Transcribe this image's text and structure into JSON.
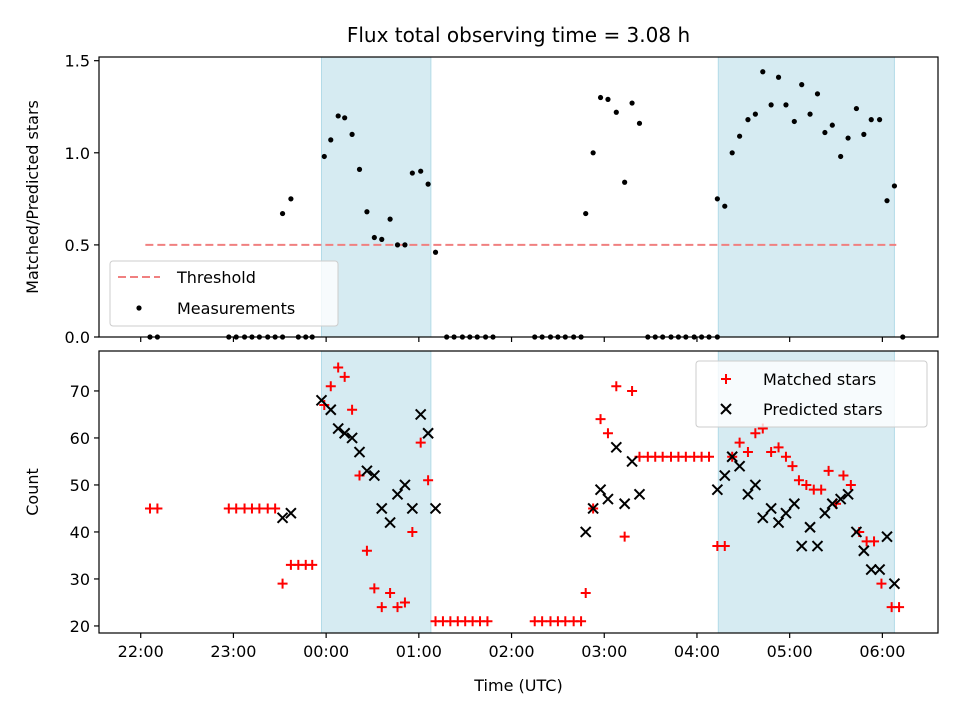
{
  "chart_data": [
    {
      "type": "scatter",
      "title": "Flux total observing time = 3.08 h",
      "ylabel": "Matched/Predicted stars",
      "xlabel": "",
      "xlim": [
        -2.45,
        6.6
      ],
      "ylim": [
        0,
        1.52
      ],
      "yticks": [
        0.0,
        0.5,
        1.0,
        1.5
      ],
      "ytick_labels": [
        "0.0",
        "0.5",
        "1.0",
        "1.5"
      ],
      "threshold": {
        "name": "Threshold",
        "y": 0.5,
        "x": [
          -1.95,
          6.15
        ],
        "color": "#f08080",
        "style": "dashed"
      },
      "legend": {
        "position": "lower-left",
        "entries": [
          "Threshold",
          "Measurements"
        ]
      },
      "shaded_regions": [
        [
          -0.05,
          1.13
        ],
        [
          4.23,
          6.13
        ]
      ],
      "series": [
        {
          "name": "Measurements",
          "marker": "dot",
          "color": "#000000",
          "points": [
            [
              -1.9,
              0
            ],
            [
              -1.82,
              0
            ],
            [
              -1.05,
              0
            ],
            [
              -0.97,
              0
            ],
            [
              -0.88,
              0
            ],
            [
              -0.8,
              0
            ],
            [
              -0.72,
              0
            ],
            [
              -0.63,
              0
            ],
            [
              -0.55,
              0
            ],
            [
              -0.47,
              0
            ],
            [
              -0.3,
              0
            ],
            [
              -0.22,
              0
            ],
            [
              -0.15,
              0
            ],
            [
              -0.47,
              0.67
            ],
            [
              -0.38,
              0.75
            ],
            [
              -0.02,
              0.98
            ],
            [
              0.05,
              1.07
            ],
            [
              0.13,
              1.2
            ],
            [
              0.2,
              1.19
            ],
            [
              0.28,
              1.1
            ],
            [
              0.36,
              0.91
            ],
            [
              0.44,
              0.68
            ],
            [
              0.52,
              0.54
            ],
            [
              0.6,
              0.53
            ],
            [
              0.69,
              0.64
            ],
            [
              0.77,
              0.5
            ],
            [
              0.85,
              0.5
            ],
            [
              0.93,
              0.89
            ],
            [
              1.02,
              0.9
            ],
            [
              1.1,
              0.83
            ],
            [
              1.18,
              0.46
            ],
            [
              1.3,
              0
            ],
            [
              1.38,
              0
            ],
            [
              1.47,
              0
            ],
            [
              1.55,
              0
            ],
            [
              1.63,
              0
            ],
            [
              1.72,
              0
            ],
            [
              1.8,
              0
            ],
            [
              2.25,
              0
            ],
            [
              2.33,
              0
            ],
            [
              2.42,
              0
            ],
            [
              2.5,
              0
            ],
            [
              2.58,
              0
            ],
            [
              2.67,
              0
            ],
            [
              2.75,
              0
            ],
            [
              2.8,
              0.67
            ],
            [
              2.88,
              1.0
            ],
            [
              2.96,
              1.3
            ],
            [
              3.04,
              1.29
            ],
            [
              3.13,
              1.22
            ],
            [
              3.22,
              0.84
            ],
            [
              3.3,
              1.27
            ],
            [
              3.38,
              1.16
            ],
            [
              3.47,
              0
            ],
            [
              3.55,
              0
            ],
            [
              3.63,
              0
            ],
            [
              3.72,
              0
            ],
            [
              3.8,
              0
            ],
            [
              3.88,
              0
            ],
            [
              3.97,
              0
            ],
            [
              4.05,
              0
            ],
            [
              4.13,
              0
            ],
            [
              4.22,
              0
            ],
            [
              4.22,
              0.75
            ],
            [
              4.3,
              0.71
            ],
            [
              4.38,
              1.0
            ],
            [
              4.46,
              1.09
            ],
            [
              4.55,
              1.18
            ],
            [
              4.63,
              1.21
            ],
            [
              4.71,
              1.44
            ],
            [
              4.8,
              1.26
            ],
            [
              4.88,
              1.41
            ],
            [
              4.96,
              1.26
            ],
            [
              5.05,
              1.17
            ],
            [
              5.13,
              1.37
            ],
            [
              5.22,
              1.21
            ],
            [
              5.3,
              1.32
            ],
            [
              5.38,
              1.11
            ],
            [
              5.46,
              1.15
            ],
            [
              5.55,
              0.98
            ],
            [
              5.63,
              1.08
            ],
            [
              5.72,
              1.24
            ],
            [
              5.8,
              1.1
            ],
            [
              5.88,
              1.18
            ],
            [
              5.97,
              1.18
            ],
            [
              6.05,
              0.74
            ],
            [
              6.13,
              0.82
            ],
            [
              6.22,
              0
            ]
          ]
        }
      ]
    },
    {
      "type": "scatter",
      "title": "",
      "xlabel": "Time (UTC)",
      "ylabel": "Count",
      "xlim": [
        -2.45,
        6.6
      ],
      "ylim": [
        18.5,
        78.5
      ],
      "xticks": [
        -2,
        -1,
        0,
        1,
        2,
        3,
        4,
        5,
        6
      ],
      "xtick_labels": [
        "22:00",
        "23:00",
        "00:00",
        "01:00",
        "02:00",
        "03:00",
        "04:00",
        "05:00",
        "06:00"
      ],
      "yticks": [
        20,
        30,
        40,
        50,
        60,
        70
      ],
      "ytick_labels": [
        "20",
        "30",
        "40",
        "50",
        "60",
        "70"
      ],
      "legend": {
        "position": "top-right",
        "entries": [
          "Matched stars",
          "Predicted stars"
        ]
      },
      "shaded_regions": [
        [
          -0.05,
          1.13
        ],
        [
          4.23,
          6.13
        ]
      ],
      "series": [
        {
          "name": "Matched stars",
          "marker": "plus",
          "color": "#ff0000",
          "points": [
            [
              -1.9,
              45
            ],
            [
              -1.82,
              45
            ],
            [
              -1.05,
              45
            ],
            [
              -0.97,
              45
            ],
            [
              -0.88,
              45
            ],
            [
              -0.8,
              45
            ],
            [
              -0.72,
              45
            ],
            [
              -0.63,
              45
            ],
            [
              -0.55,
              45
            ],
            [
              -0.47,
              29
            ],
            [
              -0.38,
              33
            ],
            [
              -0.3,
              33
            ],
            [
              -0.22,
              33
            ],
            [
              -0.15,
              33
            ],
            [
              -0.02,
              67
            ],
            [
              0.05,
              71
            ],
            [
              0.13,
              75
            ],
            [
              0.2,
              73
            ],
            [
              0.28,
              66
            ],
            [
              0.36,
              52
            ],
            [
              0.44,
              36
            ],
            [
              0.52,
              28
            ],
            [
              0.6,
              24
            ],
            [
              0.69,
              27
            ],
            [
              0.77,
              24
            ],
            [
              0.85,
              25
            ],
            [
              0.93,
              40
            ],
            [
              1.02,
              59
            ],
            [
              1.1,
              51
            ],
            [
              1.18,
              21
            ],
            [
              1.26,
              21
            ],
            [
              1.34,
              21
            ],
            [
              1.42,
              21
            ],
            [
              1.5,
              21
            ],
            [
              1.58,
              21
            ],
            [
              1.66,
              21
            ],
            [
              1.74,
              21
            ],
            [
              2.25,
              21
            ],
            [
              2.33,
              21
            ],
            [
              2.42,
              21
            ],
            [
              2.5,
              21
            ],
            [
              2.58,
              21
            ],
            [
              2.67,
              21
            ],
            [
              2.75,
              21
            ],
            [
              2.8,
              27
            ],
            [
              2.88,
              45
            ],
            [
              2.96,
              64
            ],
            [
              3.04,
              61
            ],
            [
              3.13,
              71
            ],
            [
              3.22,
              39
            ],
            [
              3.3,
              70
            ],
            [
              3.38,
              56
            ],
            [
              3.47,
              56
            ],
            [
              3.55,
              56
            ],
            [
              3.63,
              56
            ],
            [
              3.72,
              56
            ],
            [
              3.8,
              56
            ],
            [
              3.88,
              56
            ],
            [
              3.97,
              56
            ],
            [
              4.05,
              56
            ],
            [
              4.13,
              56
            ],
            [
              4.22,
              37
            ],
            [
              4.3,
              37
            ],
            [
              4.38,
              56
            ],
            [
              4.46,
              59
            ],
            [
              4.55,
              57
            ],
            [
              4.63,
              61
            ],
            [
              4.71,
              62
            ],
            [
              4.8,
              57
            ],
            [
              4.88,
              58
            ],
            [
              4.96,
              56
            ],
            [
              5.03,
              54
            ],
            [
              5.1,
              51
            ],
            [
              5.18,
              50
            ],
            [
              5.26,
              49
            ],
            [
              5.34,
              49
            ],
            [
              5.42,
              53
            ],
            [
              5.5,
              46
            ],
            [
              5.58,
              52
            ],
            [
              5.66,
              50
            ],
            [
              5.75,
              40
            ],
            [
              5.83,
              38
            ],
            [
              5.91,
              38
            ],
            [
              5.99,
              29
            ],
            [
              6.1,
              24
            ],
            [
              6.18,
              24
            ]
          ]
        },
        {
          "name": "Predicted stars",
          "marker": "x",
          "color": "#000000",
          "points": [
            [
              -0.47,
              43
            ],
            [
              -0.38,
              44
            ],
            [
              -0.05,
              68
            ],
            [
              0.05,
              66
            ],
            [
              0.13,
              62
            ],
            [
              0.2,
              61
            ],
            [
              0.28,
              60
            ],
            [
              0.36,
              57
            ],
            [
              0.44,
              53
            ],
            [
              0.52,
              52
            ],
            [
              0.6,
              45
            ],
            [
              0.69,
              42
            ],
            [
              0.77,
              48
            ],
            [
              0.85,
              50
            ],
            [
              0.93,
              45
            ],
            [
              1.02,
              65
            ],
            [
              1.1,
              61
            ],
            [
              1.18,
              45
            ],
            [
              2.8,
              40
            ],
            [
              2.88,
              45
            ],
            [
              2.96,
              49
            ],
            [
              3.04,
              47
            ],
            [
              3.13,
              58
            ],
            [
              3.22,
              46
            ],
            [
              3.3,
              55
            ],
            [
              3.38,
              48
            ],
            [
              4.22,
              49
            ],
            [
              4.3,
              52
            ],
            [
              4.38,
              56
            ],
            [
              4.46,
              54
            ],
            [
              4.55,
              48
            ],
            [
              4.63,
              50
            ],
            [
              4.71,
              43
            ],
            [
              4.8,
              45
            ],
            [
              4.88,
              42
            ],
            [
              4.96,
              44
            ],
            [
              5.05,
              46
            ],
            [
              5.13,
              37
            ],
            [
              5.22,
              41
            ],
            [
              5.3,
              37
            ],
            [
              5.38,
              44
            ],
            [
              5.46,
              46
            ],
            [
              5.55,
              47
            ],
            [
              5.63,
              48
            ],
            [
              5.72,
              40
            ],
            [
              5.8,
              36
            ],
            [
              5.88,
              32
            ],
            [
              5.97,
              32
            ],
            [
              6.05,
              39
            ],
            [
              6.13,
              29
            ]
          ]
        }
      ]
    }
  ]
}
